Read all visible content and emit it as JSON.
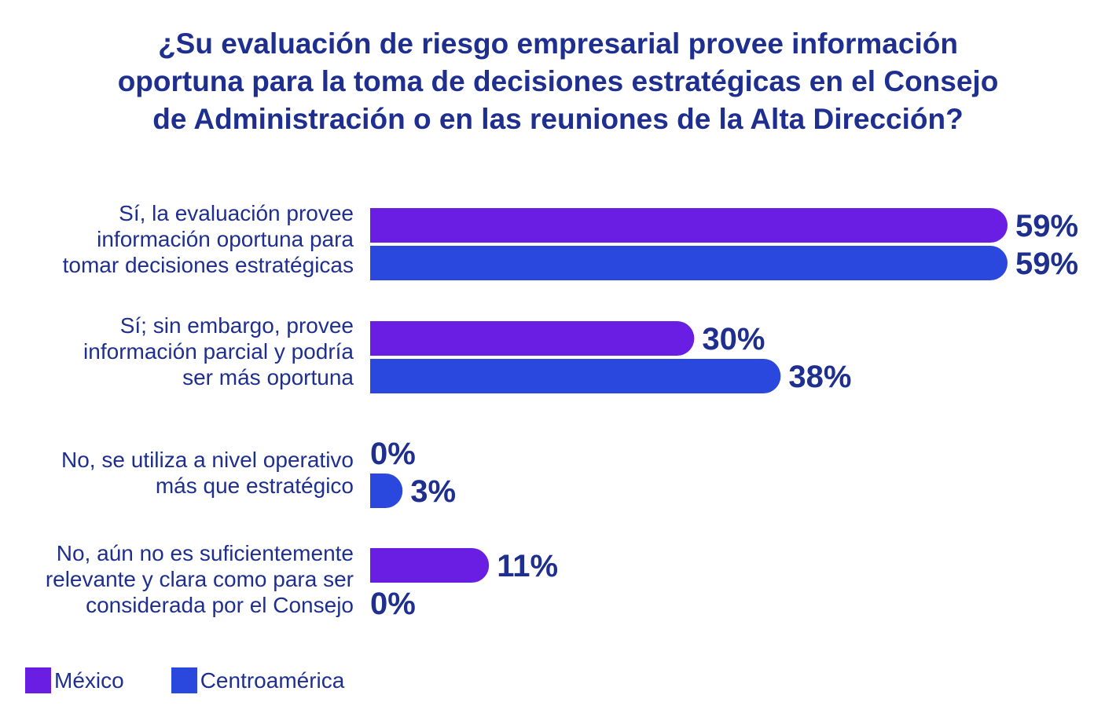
{
  "title_lines": [
    "¿Su evaluación de riesgo empresarial provee información",
    "oportuna para la toma de decisiones estratégicas en el Consejo",
    "de Administración o en las reuniones de la Alta Dirección?"
  ],
  "colors": {
    "mexico": "#6a1ee3",
    "centroamerica": "#2b48de",
    "text": "#1e2f8f"
  },
  "chart_data": {
    "type": "bar",
    "orientation": "horizontal",
    "title": "¿Su evaluación de riesgo empresarial provee información oportuna para la toma de decisiones estratégicas en el Consejo de Administración o en las reuniones de la Alta Dirección?",
    "categories": [
      [
        "Sí, la evaluación provee",
        "información oportuna para",
        "tomar decisiones estratégicas"
      ],
      [
        "Sí; sin embargo, provee",
        "información parcial y podría",
        "ser más oportuna"
      ],
      [
        "No, se utiliza a nivel operativo",
        "más que estratégico"
      ],
      [
        "No, aún no es suficientemente",
        "relevante y clara como para ser",
        "considerada por el Consejo"
      ]
    ],
    "series": [
      {
        "name": "México",
        "values": [
          59,
          30,
          0,
          11
        ],
        "labels": [
          "59%",
          "30%",
          "0%",
          "11%"
        ]
      },
      {
        "name": "Centroamérica",
        "values": [
          59,
          38,
          3,
          0
        ],
        "labels": [
          "59%",
          "38%",
          "3%",
          "0%"
        ]
      }
    ],
    "unit": "%",
    "xlim": [
      0,
      59
    ],
    "grid": false,
    "legend": "bottom-left"
  }
}
